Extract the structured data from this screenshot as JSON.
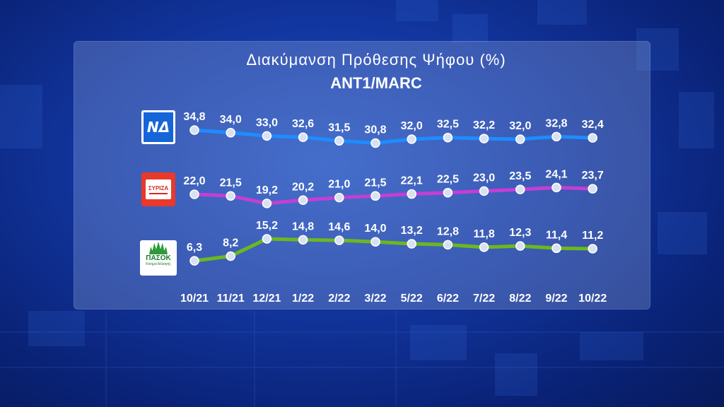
{
  "title": "Διακύμανση Πρόθεσης Ψήφου (%)",
  "subtitle": "ANT1/MARC",
  "logos": {
    "nd": {
      "text": "ΝΔ",
      "icon": "nd-logo-icon"
    },
    "syriza": {
      "text": "ΣΥΡΙΖΑ",
      "icon": "syriza-logo-icon"
    },
    "pasok": {
      "text": "ΠΑΣΟΚ",
      "subtext": "Κίνημα Αλλαγής",
      "icon": "pasok-logo-icon"
    }
  },
  "colors": {
    "nd": "#1e8cff",
    "syriza": "#c23fd6",
    "pasok": "#6bb81f",
    "marker_fill": "#d8e1f2",
    "text": "#ffffff"
  },
  "chart_data": {
    "type": "line",
    "title": "Διακύμανση Πρόθεσης Ψήφου (%)",
    "subtitle": "ANT1/MARC",
    "categories": [
      "10/21",
      "11/21",
      "12/21",
      "1/22",
      "2/22",
      "3/22",
      "5/22",
      "6/22",
      "7/22",
      "8/22",
      "9/22",
      "10/22"
    ],
    "series": [
      {
        "key": "nd",
        "values": [
          34.8,
          34.0,
          33.0,
          32.6,
          31.5,
          30.8,
          32.0,
          32.5,
          32.2,
          32.0,
          32.8,
          32.4
        ],
        "labels": [
          "34,8",
          "34,0",
          "33,0",
          "32,6",
          "31,5",
          "30,8",
          "32,0",
          "32,5",
          "32,2",
          "32,0",
          "32,8",
          "32,4"
        ]
      },
      {
        "key": "syriza",
        "values": [
          22.0,
          21.5,
          19.2,
          20.2,
          21.0,
          21.5,
          22.1,
          22.5,
          23.0,
          23.5,
          24.1,
          23.7
        ],
        "labels": [
          "22,0",
          "21,5",
          "19,2",
          "20,2",
          "21,0",
          "21,5",
          "22,1",
          "22,5",
          "23,0",
          "23,5",
          "24,1",
          "23,7"
        ]
      },
      {
        "key": "pasok",
        "values": [
          6.3,
          8.2,
          15.2,
          14.8,
          14.6,
          14.0,
          13.2,
          12.8,
          11.8,
          12.3,
          11.4,
          11.2
        ],
        "labels": [
          "6,3",
          "8,2",
          "15,2",
          "14,8",
          "14,6",
          "14,0",
          "13,2",
          "12,8",
          "11,8",
          "12,3",
          "11,4",
          "11,2"
        ]
      }
    ],
    "grid": false,
    "legend": "left logos"
  }
}
